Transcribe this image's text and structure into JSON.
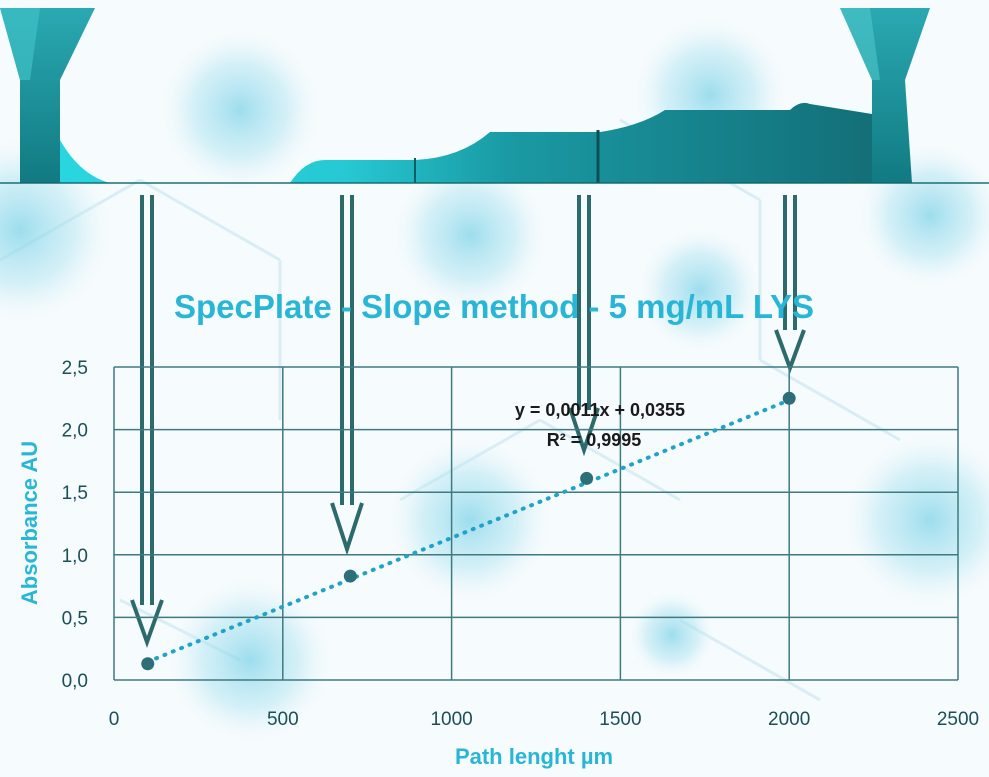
{
  "chart_data": {
    "type": "scatter",
    "title": "SpecPlate - Slope method - 5 mg/mL LYS",
    "xlabel": "Path lenght µm",
    "ylabel": "Absorbance AU",
    "xlim": [
      0,
      2500
    ],
    "ylim": [
      0,
      2.5
    ],
    "x_ticks": [
      "0",
      "500",
      "1000",
      "1500",
      "2000",
      "2500"
    ],
    "y_ticks": [
      "0,0",
      "0,5",
      "1,0",
      "1,5",
      "2,0",
      "2,5"
    ],
    "grid": true,
    "points": [
      {
        "x": 100,
        "y": 0.13
      },
      {
        "x": 700,
        "y": 0.83
      },
      {
        "x": 1400,
        "y": 1.61
      },
      {
        "x": 2000,
        "y": 2.25
      }
    ],
    "trendline": {
      "type": "linear",
      "slope": 0.0011,
      "intercept": 0.0355,
      "equation": "y = 0,0011x + 0,0355",
      "r_squared": "R² = 0,9995"
    },
    "colors": {
      "accent": "#29b6d6",
      "point": "#2c6f78",
      "trend": "#1fa3c6",
      "grid": "#3e7a80",
      "arrow": "#2c6a6c"
    }
  }
}
